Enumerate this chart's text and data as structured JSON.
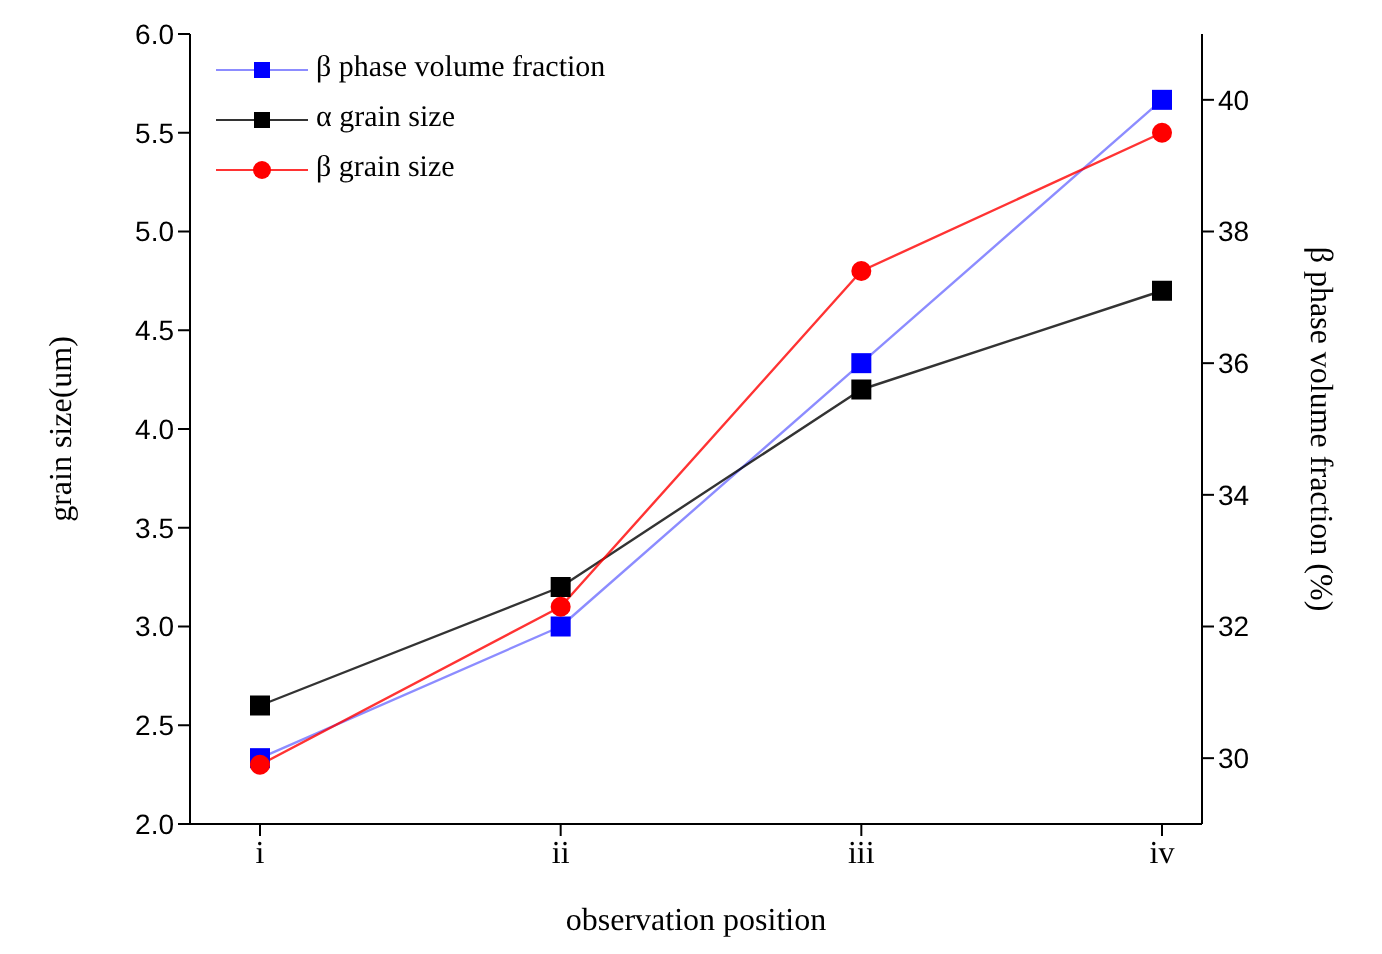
{
  "chart_data": {
    "type": "line",
    "xlabel": "observation position",
    "ylabel": "grain size(um)",
    "y2label": "β phase volume fraction (%)",
    "categories": [
      "i",
      "ii",
      "iii",
      "iv"
    ],
    "series": [
      {
        "name": "β phase volume fraction",
        "color": "#0000ff",
        "values": [
          30,
          32,
          36,
          40
        ],
        "axis": "y2",
        "marker": "square"
      },
      {
        "name": "α grain size",
        "color": "#000000",
        "values": [
          2.6,
          3.2,
          4.2,
          4.7
        ],
        "marker": "square"
      },
      {
        "name": "β grain size",
        "color": "#ff0000",
        "values": [
          2.3,
          3.1,
          4.8,
          5.5
        ],
        "marker": "circle"
      }
    ],
    "ylim": [
      2,
      6
    ],
    "yticks": [
      {
        "value": 2,
        "label": "2.0"
      },
      {
        "value": 2.5,
        "label": "2.5"
      },
      {
        "value": 3,
        "label": "3.0"
      },
      {
        "value": 3.5,
        "label": "3.5"
      },
      {
        "value": 4,
        "label": "4.0"
      },
      {
        "value": 4.5,
        "label": "4.5"
      },
      {
        "value": 5,
        "label": "5.0"
      },
      {
        "value": 5.5,
        "label": "5.5"
      },
      {
        "value": 6,
        "label": "6.0"
      }
    ],
    "y2lim": [
      29,
      41
    ],
    "y2ticks": [
      30,
      32,
      34,
      36,
      38,
      40
    ],
    "grid": false,
    "legend": "top left",
    "line_style": "solid"
  }
}
